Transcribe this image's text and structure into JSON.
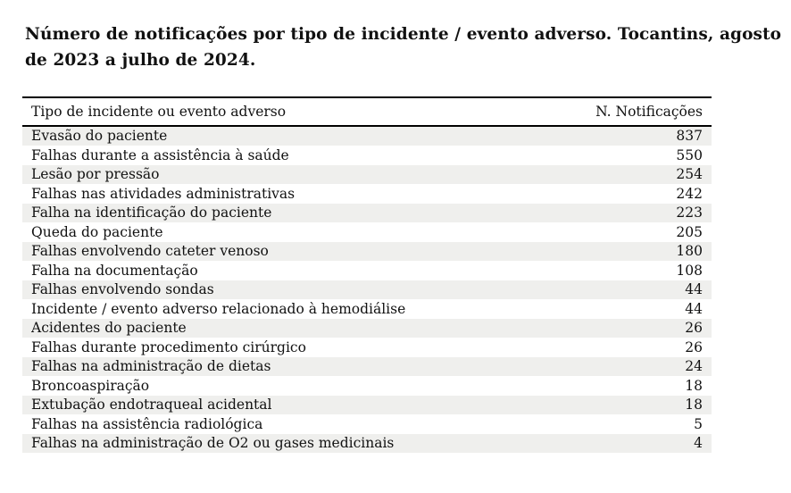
{
  "title": {
    "line1": "Número de notificações por tipo de incidente / evento adverso. Tocantins, agosto",
    "line2": "de 2023 a julho de 2024."
  },
  "table": {
    "header": {
      "type": "Tipo de incidente ou evento adverso",
      "count": "N. Notificações"
    },
    "rows": [
      {
        "label": "Evasão do paciente",
        "value": 837
      },
      {
        "label": "Falhas durante a assistência à saúde",
        "value": 550
      },
      {
        "label": "Lesão por pressão",
        "value": 254
      },
      {
        "label": "Falhas nas atividades administrativas",
        "value": 242
      },
      {
        "label": "Falha na identificação do paciente",
        "value": 223
      },
      {
        "label": "Queda do paciente",
        "value": 205
      },
      {
        "label": "Falhas envolvendo cateter venoso",
        "value": 180
      },
      {
        "label": "Falha na documentação",
        "value": 108
      },
      {
        "label": "Falhas envolvendo sondas",
        "value": 44
      },
      {
        "label": "Incidente / evento adverso relacionado à hemodiálise",
        "value": 44
      },
      {
        "label": "Acidentes do paciente",
        "value": 26
      },
      {
        "label": "Falhas durante procedimento cirúrgico",
        "value": 26
      },
      {
        "label": "Falhas na administração de dietas",
        "value": 24
      },
      {
        "label": "Broncoaspiração",
        "value": 18
      },
      {
        "label": "Extubação endotraqueal acidental",
        "value": 18
      },
      {
        "label": "Falhas na assistência radiológica",
        "value": 5
      },
      {
        "label": "Falhas na administração de O2 ou gases medicinais",
        "value": 4
      }
    ]
  },
  "colors": {
    "stripe": "#efefed",
    "text": "#111111",
    "rule": "#000000"
  }
}
